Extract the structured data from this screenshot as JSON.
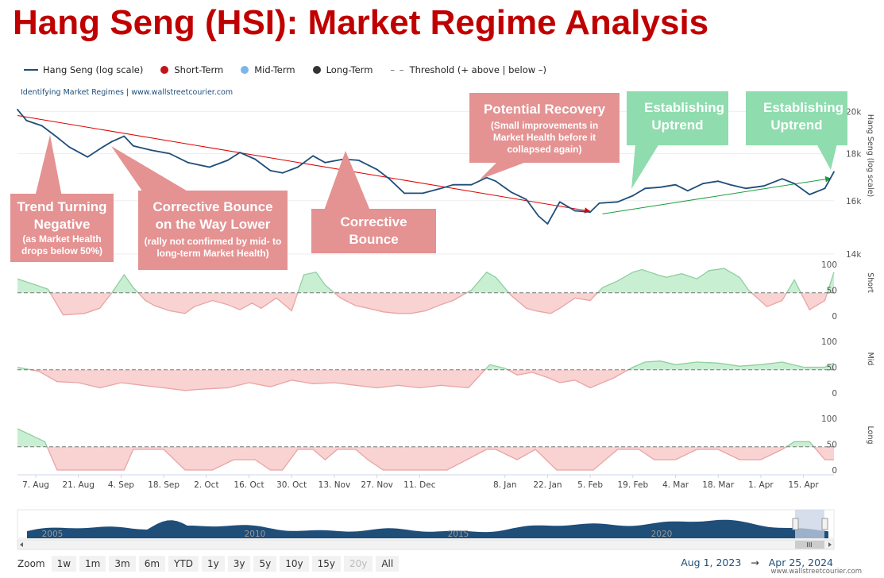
{
  "title": "Hang Seng (HSI): Market Regime Analysis",
  "legend": {
    "hang_seng": "Hang Seng (log scale)",
    "short_term": "Short-Term",
    "mid_term": "Mid-Term",
    "long_term": "Long-Term",
    "threshold": "Threshold (+ above | below –)",
    "threshold_dash": "– –"
  },
  "colors": {
    "title": "#c00000",
    "price_line": "#1f4e79",
    "short_dot": "#c0141c",
    "mid_dot": "#7cb5ec",
    "long_dot": "#333333",
    "callout_red": "#e49292",
    "callout_green": "#8fdcae",
    "trend_down": "#e00000",
    "trend_up": "#1a9c3c",
    "fill_above": "#c9efd3",
    "fill_below": "#f9d2d2"
  },
  "credit": "Identifying Market Regimes | www.wallstreetcourier.com",
  "callouts": {
    "trend_neg_main": "Trend Turning Negative",
    "trend_neg_sub": "(as Market Health drops below 50%)",
    "bounce_lower_main": "Corrective Bounce on the Way Lower",
    "bounce_lower_sub": "(rally not confirmed  by mid- to long-term Market Health)",
    "corrective_main": "Corrective Bounce",
    "recovery_main": "Potential Recovery",
    "recovery_sub": "(Small improvements in Market Health before it collapsed again)",
    "uptrend1_main": "Establishing Uptrend",
    "uptrend2_main": "Establishing Uptrend"
  },
  "axes": {
    "price_title": "Hang Seng (log scale)",
    "price_ticks": [
      "20k",
      "18k",
      "16k",
      "14k"
    ],
    "short_title": "Short",
    "mid_title": "Mid",
    "long_title": "Long",
    "pane_ticks": [
      "100",
      "50",
      "0"
    ]
  },
  "navigator": {
    "years": [
      "2005",
      "2010",
      "2015",
      "2020"
    ],
    "handle": "III"
  },
  "zoom": {
    "label": "Zoom",
    "buttons": [
      "1w",
      "1m",
      "3m",
      "6m",
      "YTD",
      "1y",
      "3y",
      "5y",
      "10y",
      "15y",
      "20y",
      "All"
    ],
    "disabled": "20y"
  },
  "range": {
    "from": "Aug 1, 2023",
    "arrow": "→",
    "to": "Apr 25, 2024"
  },
  "footer_site": "www.wallstreetcourier.com",
  "chart_data": {
    "type": "line",
    "title": "Hang Seng (HSI): Market Regime Analysis",
    "x_ticks": [
      "7. Aug",
      "21. Aug",
      "4. Sep",
      "18. Sep",
      "2. Oct",
      "16. Oct",
      "30. Oct",
      "13. Nov",
      "27. Nov",
      "11. Dec",
      "8. Jan",
      "22. Jan",
      "5. Feb",
      "19. Feb",
      "4. Mar",
      "18. Mar",
      "1. Apr",
      "15. Apr"
    ],
    "x_range": [
      "2023-08-01",
      "2024-04-25"
    ],
    "price": {
      "name": "Hang Seng (log scale)",
      "scale": "log",
      "ylim": [
        14000,
        20500
      ],
      "dates": [
        "2023-08-01",
        "2023-08-04",
        "2023-08-09",
        "2023-08-14",
        "2023-08-18",
        "2023-08-24",
        "2023-08-29",
        "2023-09-01",
        "2023-09-05",
        "2023-09-08",
        "2023-09-14",
        "2023-09-20",
        "2023-09-26",
        "2023-10-03",
        "2023-10-09",
        "2023-10-13",
        "2023-10-18",
        "2023-10-23",
        "2023-10-27",
        "2023-11-01",
        "2023-11-06",
        "2023-11-10",
        "2023-11-16",
        "2023-11-21",
        "2023-11-27",
        "2023-12-01",
        "2023-12-06",
        "2023-12-12",
        "2023-12-18",
        "2023-12-22",
        "2023-12-28",
        "2024-01-02",
        "2024-01-05",
        "2024-01-10",
        "2024-01-15",
        "2024-01-19",
        "2024-01-22",
        "2024-01-26",
        "2024-01-31",
        "2024-02-05",
        "2024-02-08",
        "2024-02-14",
        "2024-02-19",
        "2024-02-23",
        "2024-02-28",
        "2024-03-04",
        "2024-03-08",
        "2024-03-13",
        "2024-03-18",
        "2024-03-22",
        "2024-03-27",
        "2024-04-02",
        "2024-04-08",
        "2024-04-12",
        "2024-04-17",
        "2024-04-22",
        "2024-04-25"
      ],
      "values": [
        20100,
        19550,
        19300,
        18750,
        18300,
        17850,
        18300,
        18550,
        18800,
        18350,
        18150,
        18000,
        17600,
        17400,
        17700,
        18050,
        17750,
        17250,
        17150,
        17400,
        17900,
        17600,
        17750,
        17700,
        17300,
        16900,
        16300,
        16300,
        16500,
        16650,
        16650,
        16950,
        16800,
        16350,
        16050,
        15400,
        15100,
        15950,
        15600,
        15550,
        15900,
        15950,
        16200,
        16500,
        16550,
        16650,
        16400,
        16700,
        16800,
        16650,
        16500,
        16600,
        16900,
        16700,
        16250,
        16500,
        17200
      ]
    },
    "trendlines": [
      {
        "name": "downtrend",
        "from": [
          "2023-08-01",
          19800
        ],
        "to": [
          "2024-02-05",
          15580
        ]
      },
      {
        "name": "uptrend",
        "from": [
          "2024-02-09",
          15480
        ],
        "to": [
          "2024-04-24",
          16920
        ]
      }
    ],
    "threshold": 45,
    "short": {
      "name": "Short-Term",
      "ylim": [
        0,
        100
      ],
      "dates": [
        "2023-08-01",
        "2023-08-08",
        "2023-08-11",
        "2023-08-16",
        "2023-08-23",
        "2023-08-28",
        "2023-09-01",
        "2023-09-05",
        "2023-09-08",
        "2023-09-12",
        "2023-09-15",
        "2023-09-20",
        "2023-09-25",
        "2023-09-28",
        "2023-10-04",
        "2023-10-09",
        "2023-10-13",
        "2023-10-17",
        "2023-10-20",
        "2023-10-25",
        "2023-10-30",
        "2023-11-03",
        "2023-11-07",
        "2023-11-10",
        "2023-11-15",
        "2023-11-20",
        "2023-11-24",
        "2023-11-29",
        "2023-12-04",
        "2023-12-08",
        "2023-12-13",
        "2023-12-18",
        "2023-12-22",
        "2023-12-28",
        "2024-01-02",
        "2024-01-05",
        "2024-01-10",
        "2024-01-15",
        "2024-01-18",
        "2024-01-23",
        "2024-01-26",
        "2024-01-31",
        "2024-02-05",
        "2024-02-09",
        "2024-02-14",
        "2024-02-19",
        "2024-02-22",
        "2024-02-27",
        "2024-03-01",
        "2024-03-06",
        "2024-03-11",
        "2024-03-15",
        "2024-03-20",
        "2024-03-25",
        "2024-03-28",
        "2024-04-03",
        "2024-04-08",
        "2024-04-12",
        "2024-04-17",
        "2024-04-22",
        "2024-04-25"
      ],
      "values": [
        72,
        58,
        52,
        2,
        5,
        15,
        45,
        80,
        55,
        30,
        20,
        10,
        5,
        18,
        30,
        22,
        12,
        25,
        15,
        35,
        10,
        80,
        85,
        60,
        35,
        20,
        15,
        8,
        5,
        5,
        10,
        22,
        30,
        50,
        85,
        75,
        40,
        15,
        10,
        5,
        15,
        35,
        30,
        55,
        68,
        85,
        90,
        80,
        75,
        82,
        72,
        88,
        92,
        75,
        50,
        18,
        30,
        70,
        12,
        30,
        85
      ]
    },
    "mid": {
      "name": "Mid-Term",
      "ylim": [
        0,
        100
      ],
      "dates": [
        "2023-08-01",
        "2023-08-08",
        "2023-08-14",
        "2023-08-21",
        "2023-08-28",
        "2023-09-04",
        "2023-09-11",
        "2023-09-18",
        "2023-09-25",
        "2023-10-02",
        "2023-10-09",
        "2023-10-16",
        "2023-10-23",
        "2023-10-30",
        "2023-11-06",
        "2023-11-13",
        "2023-11-20",
        "2023-11-27",
        "2023-12-04",
        "2023-12-11",
        "2023-12-18",
        "2023-12-27",
        "2024-01-03",
        "2024-01-08",
        "2024-01-12",
        "2024-01-17",
        "2024-01-22",
        "2024-01-26",
        "2024-01-31",
        "2024-02-05",
        "2024-02-13",
        "2024-02-19",
        "2024-02-23",
        "2024-02-28",
        "2024-03-04",
        "2024-03-11",
        "2024-03-18",
        "2024-03-25",
        "2024-04-01",
        "2024-04-08",
        "2024-04-15",
        "2024-04-22",
        "2024-04-25"
      ],
      "values": [
        50,
        42,
        22,
        20,
        10,
        20,
        15,
        10,
        5,
        8,
        10,
        20,
        12,
        25,
        18,
        20,
        15,
        10,
        15,
        10,
        15,
        10,
        55,
        48,
        35,
        40,
        30,
        20,
        25,
        10,
        30,
        50,
        60,
        62,
        55,
        60,
        58,
        52,
        55,
        60,
        50,
        50,
        58
      ]
    },
    "long": {
      "name": "Long-Term",
      "ylim": [
        0,
        100
      ],
      "dates": [
        "2023-08-01",
        "2023-08-10",
        "2023-08-14",
        "2023-08-24",
        "2023-09-05",
        "2023-09-08",
        "2023-09-18",
        "2023-09-25",
        "2023-09-28",
        "2023-10-04",
        "2023-10-11",
        "2023-10-18",
        "2023-10-23",
        "2023-10-27",
        "2023-11-01",
        "2023-11-06",
        "2023-11-10",
        "2023-11-14",
        "2023-11-20",
        "2023-11-24",
        "2023-11-29",
        "2023-12-04",
        "2023-12-08",
        "2023-12-13",
        "2023-12-20",
        "2024-01-02",
        "2024-01-05",
        "2024-01-12",
        "2024-01-18",
        "2024-01-25",
        "2024-02-01",
        "2024-02-06",
        "2024-02-14",
        "2024-02-21",
        "2024-02-26",
        "2024-03-04",
        "2024-03-11",
        "2024-03-18",
        "2024-03-25",
        "2024-04-01",
        "2024-04-08",
        "2024-04-12",
        "2024-04-17",
        "2024-04-22",
        "2024-04-25"
      ],
      "values": [
        80,
        55,
        0,
        0,
        0,
        40,
        40,
        0,
        0,
        0,
        20,
        20,
        0,
        0,
        40,
        40,
        20,
        40,
        40,
        20,
        0,
        0,
        0,
        0,
        0,
        40,
        40,
        20,
        40,
        0,
        0,
        0,
        40,
        40,
        20,
        20,
        40,
        40,
        20,
        20,
        40,
        55,
        55,
        20,
        20
      ]
    }
  }
}
